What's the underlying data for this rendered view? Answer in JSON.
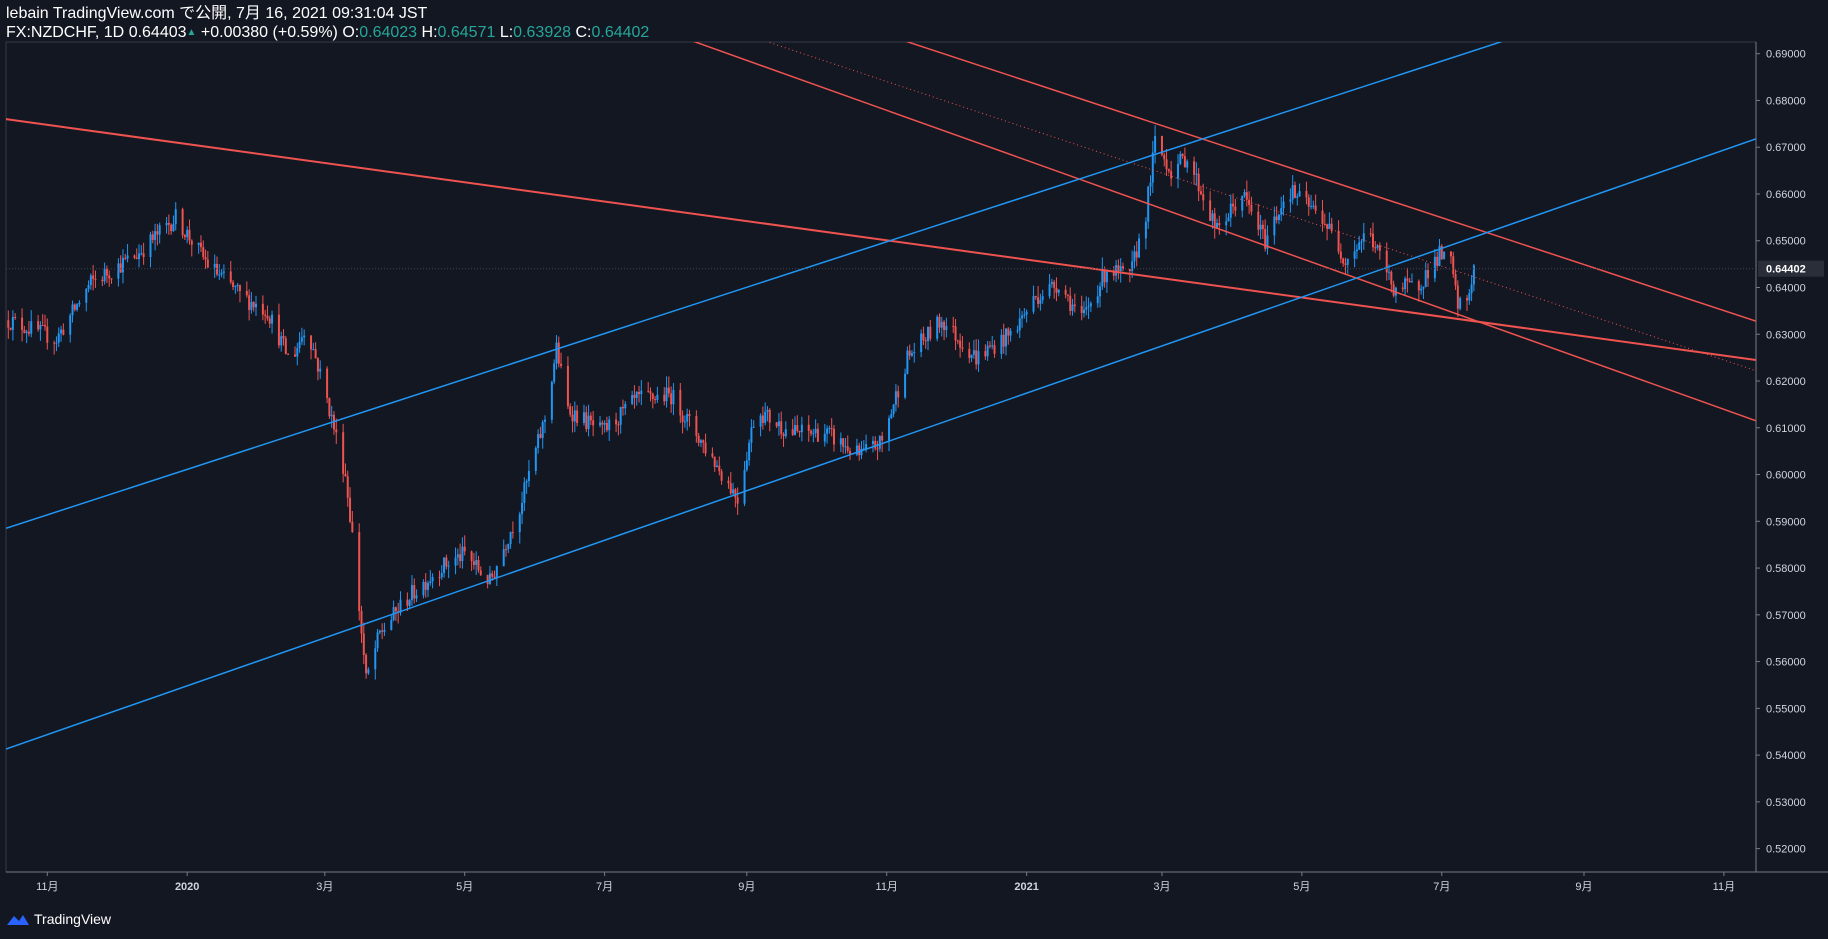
{
  "header": {
    "line1": "lebain TradingView.com で公開, 7月 16, 2021 09:31:04 JST",
    "symbol": "FX:NZDCHF, 1D",
    "last": "0.64403",
    "up_arrow": "▲",
    "change": "+0.00380 (+0.59%)",
    "o_label": "O:",
    "o_value": "0.64023",
    "h_label": "H:",
    "h_value": "0.64571",
    "l_label": "L:",
    "l_value": "0.63928",
    "c_label": "C:",
    "c_value": "0.64402"
  },
  "footer": {
    "brand": "TradingView"
  },
  "colors": {
    "background": "#131722",
    "up": "#2196f3",
    "down": "#ef5350",
    "grid": "#363a45",
    "text": "#d1d4dc"
  },
  "chart_data": {
    "type": "candlestick",
    "ylim": [
      0.515,
      0.6925
    ],
    "y_ticks": [
      "0.52000",
      "0.53000",
      "0.54000",
      "0.55000",
      "0.56000",
      "0.57000",
      "0.58000",
      "0.59000",
      "0.60000",
      "0.61000",
      "0.62000",
      "0.63000",
      "0.64000",
      "0.65000",
      "0.66000",
      "0.67000",
      "0.68000",
      "0.69000"
    ],
    "x_ticks": [
      {
        "label": "11月",
        "date": "2019-11-01"
      },
      {
        "label": "2020",
        "date": "2020-01-01"
      },
      {
        "label": "3月",
        "date": "2020-03-01"
      },
      {
        "label": "5月",
        "date": "2020-05-01"
      },
      {
        "label": "7月",
        "date": "2020-07-01"
      },
      {
        "label": "9月",
        "date": "2020-09-01"
      },
      {
        "label": "11月",
        "date": "2020-11-01"
      },
      {
        "label": "2021",
        "date": "2021-01-01"
      },
      {
        "label": "3月",
        "date": "2021-03-01"
      },
      {
        "label": "5月",
        "date": "2021-05-01"
      },
      {
        "label": "7月",
        "date": "2021-07-01"
      },
      {
        "label": "9月",
        "date": "2021-09-01"
      },
      {
        "label": "11月",
        "date": "2021-11-01"
      }
    ],
    "last_price_label": "0.64402",
    "last_price": 0.64402,
    "price_path": [
      [
        "2019-10-15",
        0.633
      ],
      [
        "2019-11-05",
        0.629
      ],
      [
        "2019-11-20",
        0.641
      ],
      [
        "2019-12-10",
        0.647
      ],
      [
        "2019-12-27",
        0.655
      ],
      [
        "2020-01-10",
        0.645
      ],
      [
        "2020-01-25",
        0.638
      ],
      [
        "2020-02-05",
        0.635
      ],
      [
        "2020-02-15",
        0.624
      ],
      [
        "2020-02-22",
        0.632
      ],
      [
        "2020-03-01",
        0.618
      ],
      [
        "2020-03-10",
        0.6
      ],
      [
        "2020-03-13",
        0.587
      ],
      [
        "2020-03-19",
        0.556
      ],
      [
        "2020-03-25",
        0.566
      ],
      [
        "2020-04-05",
        0.573
      ],
      [
        "2020-04-20",
        0.58
      ],
      [
        "2020-05-01",
        0.583
      ],
      [
        "2020-05-12",
        0.577
      ],
      [
        "2020-05-25",
        0.593
      ],
      [
        "2020-06-05",
        0.612
      ],
      [
        "2020-06-10",
        0.627
      ],
      [
        "2020-06-15",
        0.614
      ],
      [
        "2020-06-30",
        0.609
      ],
      [
        "2020-07-15",
        0.616
      ],
      [
        "2020-07-30",
        0.617
      ],
      [
        "2020-08-15",
        0.605
      ],
      [
        "2020-08-28",
        0.595
      ],
      [
        "2020-09-05",
        0.614
      ],
      [
        "2020-09-20",
        0.609
      ],
      [
        "2020-10-05",
        0.609
      ],
      [
        "2020-10-20",
        0.604
      ],
      [
        "2020-10-30",
        0.607
      ],
      [
        "2020-11-10",
        0.625
      ],
      [
        "2020-11-25",
        0.633
      ],
      [
        "2020-12-10",
        0.625
      ],
      [
        "2020-12-25",
        0.63
      ],
      [
        "2021-01-05",
        0.638
      ],
      [
        "2021-01-15",
        0.641
      ],
      [
        "2021-01-25",
        0.633
      ],
      [
        "2021-02-05",
        0.644
      ],
      [
        "2021-02-15",
        0.642
      ],
      [
        "2021-02-22",
        0.656
      ],
      [
        "2021-02-26",
        0.671
      ],
      [
        "2021-03-05",
        0.665
      ],
      [
        "2021-03-12",
        0.668
      ],
      [
        "2021-03-25",
        0.652
      ],
      [
        "2021-04-05",
        0.66
      ],
      [
        "2021-04-15",
        0.65
      ],
      [
        "2021-04-25",
        0.661
      ],
      [
        "2021-05-10",
        0.655
      ],
      [
        "2021-05-20",
        0.646
      ],
      [
        "2021-05-30",
        0.652
      ],
      [
        "2021-06-10",
        0.64
      ],
      [
        "2021-06-20",
        0.64
      ],
      [
        "2021-06-30",
        0.647
      ],
      [
        "2021-07-05",
        0.645
      ],
      [
        "2021-07-08",
        0.636
      ],
      [
        "2021-07-12",
        0.637
      ],
      [
        "2021-07-15",
        0.644
      ]
    ],
    "trendlines": [
      {
        "color": "#ef5350",
        "width": 2,
        "p1": [
          "2019-10-14",
          0.676
        ],
        "p2": [
          "2021-11-15",
          0.6245
        ]
      },
      {
        "color": "#ef5350",
        "width": 1.5,
        "p1": [
          "2020-11-01",
          0.694
        ],
        "p2": [
          "2021-11-15",
          0.6328
        ]
      },
      {
        "color": "#ef5350",
        "width": 1.5,
        "p1": [
          "2020-08-01",
          0.694
        ],
        "p2": [
          "2021-11-15",
          0.6115
        ]
      },
      {
        "color": "#ef5350",
        "width": 1,
        "dotted": true,
        "p1": [
          "2020-09-01",
          0.694
        ],
        "p2": [
          "2021-11-15",
          0.6222
        ]
      },
      {
        "color": "#2196f3",
        "width": 1.5,
        "p1": [
          "2019-10-14",
          0.5885
        ],
        "p2": [
          "2021-08-05",
          0.694
        ]
      },
      {
        "color": "#2196f3",
        "width": 1.5,
        "p1": [
          "2019-10-14",
          0.5413
        ],
        "p2": [
          "2021-11-15",
          0.6718
        ]
      }
    ]
  }
}
